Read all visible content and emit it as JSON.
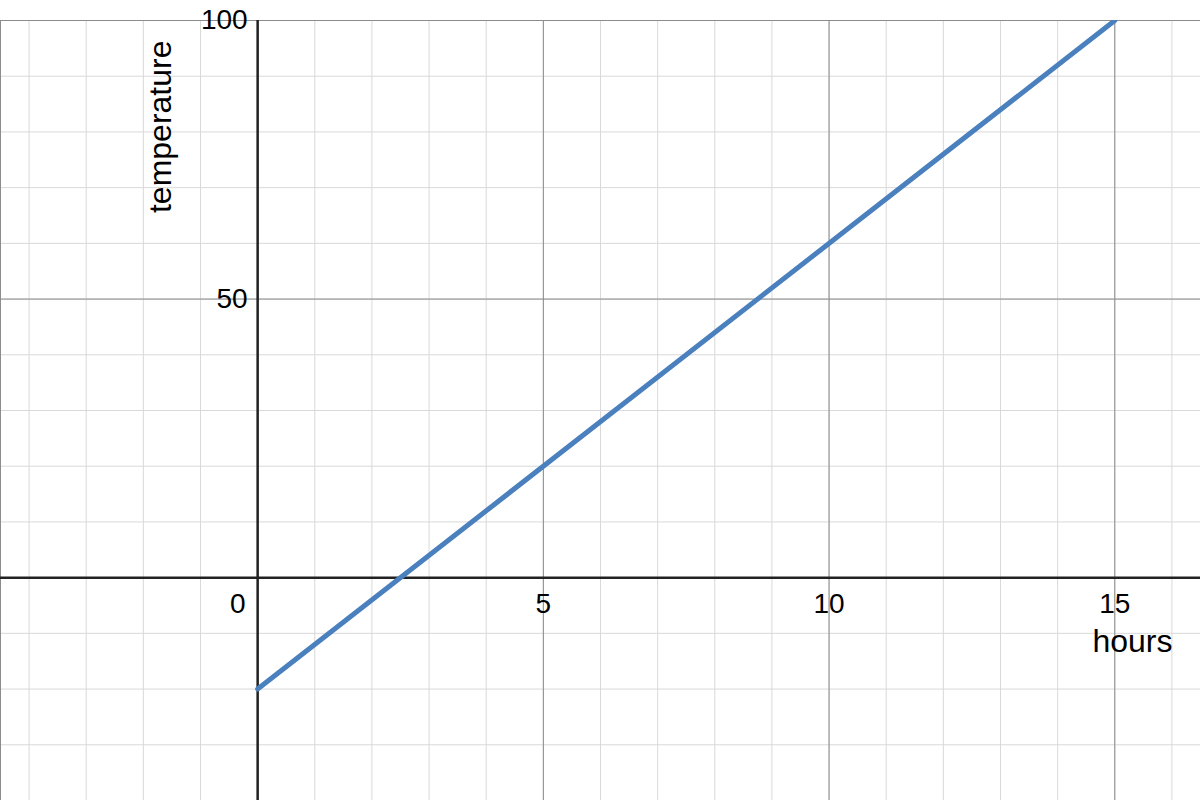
{
  "chart_data": {
    "type": "line",
    "x_label": "hours",
    "y_label": "temperature",
    "x": [
      0,
      15
    ],
    "values": [
      -20,
      100
    ],
    "color": "#4a80bd",
    "xlim": [
      -4.5,
      16.5
    ],
    "ylim": [
      -40,
      100
    ],
    "xticks": [
      0,
      5,
      10,
      15
    ],
    "yticks": [
      50,
      100
    ],
    "grid": true
  }
}
